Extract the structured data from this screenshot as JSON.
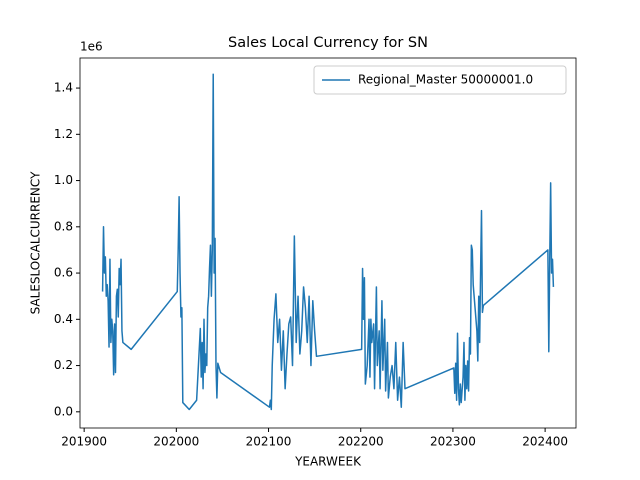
{
  "chart_data": {
    "type": "line",
    "title": "Sales Local Currency for SN",
    "xlabel": "YEARWEEK",
    "ylabel": "SALESLOCALCURRENCY",
    "y_offset_label": "1e6",
    "x": [
      201920,
      201921,
      201922,
      201923,
      201924,
      201925,
      201926,
      201927,
      201928,
      201929,
      201930,
      201931,
      201932,
      201933,
      201934,
      201935,
      201936,
      201937,
      201938,
      201939,
      201940,
      201941,
      201942,
      201951,
      202001,
      202002,
      202003,
      202004,
      202005,
      202006,
      202007,
      202014,
      202022,
      202026,
      202027,
      202028,
      202029,
      202030,
      202031,
      202032,
      202033,
      202034,
      202035,
      202036,
      202037,
      202038,
      202039,
      202040,
      202041,
      202042,
      202043,
      202044,
      202045,
      202048,
      202101,
      202102,
      202103,
      202104,
      202106,
      202108,
      202110,
      202112,
      202114,
      202116,
      202118,
      202120,
      202122,
      202124,
      202126,
      202128,
      202130,
      202132,
      202134,
      202136,
      202138,
      202140,
      202142,
      202144,
      202146,
      202148,
      202150,
      202152,
      202201,
      202202,
      202203,
      202204,
      202205,
      202207,
      202209,
      202210,
      202211,
      202212,
      202214,
      202215,
      202217,
      202218,
      202220,
      202221,
      202223,
      202224,
      202226,
      202227,
      202229,
      202230,
      202232,
      202234,
      202236,
      202238,
      202240,
      202242,
      202244,
      202246,
      202248,
      202301,
      202302,
      202303,
      202304,
      202305,
      202306,
      202307,
      202308,
      202309,
      202311,
      202312,
      202313,
      202314,
      202315,
      202316,
      202317,
      202318,
      202319,
      202320,
      202321,
      202322,
      202324,
      202326,
      202327,
      202328,
      202329,
      202330,
      202331,
      202332,
      202333,
      202403,
      202404,
      202405,
      202406,
      202407,
      202408,
      202409
    ],
    "series": [
      {
        "name": "Regional_Master 50000001.0",
        "color": "#1f77b4",
        "values": [
          520000,
          800000,
          600000,
          670000,
          500000,
          550000,
          480000,
          280000,
          660000,
          300000,
          400000,
          350000,
          160000,
          380000,
          170000,
          500000,
          530000,
          410000,
          620000,
          550000,
          660000,
          350000,
          300000,
          270000,
          520000,
          700000,
          930000,
          600000,
          410000,
          450000,
          40000,
          10000,
          50000,
          360000,
          150000,
          300000,
          100000,
          400000,
          170000,
          250000,
          200000,
          450000,
          500000,
          620000,
          720000,
          500000,
          700000,
          1460000,
          600000,
          750000,
          200000,
          60000,
          210000,
          170000,
          20000,
          50000,
          10000,
          200000,
          400000,
          510000,
          300000,
          400000,
          180000,
          350000,
          100000,
          250000,
          380000,
          410000,
          200000,
          760000,
          300000,
          500000,
          250000,
          350000,
          540000,
          450000,
          300000,
          500000,
          200000,
          480000,
          350000,
          240000,
          270000,
          620000,
          400000,
          580000,
          120000,
          200000,
          400000,
          150000,
          400000,
          300000,
          380000,
          100000,
          540000,
          200000,
          350000,
          100000,
          480000,
          180000,
          400000,
          90000,
          300000,
          60000,
          150000,
          200000,
          100000,
          300000,
          50000,
          150000,
          20000,
          300000,
          100000,
          190000,
          80000,
          210000,
          50000,
          340000,
          100000,
          30000,
          120000,
          40000,
          150000,
          300000,
          50000,
          200000,
          100000,
          220000,
          90000,
          320000,
          250000,
          720000,
          700000,
          550000,
          450000,
          350000,
          220000,
          500000,
          300000,
          600000,
          870000,
          430000,
          460000,
          700000,
          260000,
          650000,
          990000,
          600000,
          660000,
          540000
        ]
      }
    ],
    "xlim": [
      201895.5,
      202433.5
    ],
    "xticks": [
      201900,
      202000,
      202100,
      202200,
      202300,
      202400
    ],
    "ylim": [
      -70000,
      1530000
    ],
    "yticks": [
      {
        "value": 0,
        "label": "0.0"
      },
      {
        "value": 200000,
        "label": "0.2"
      },
      {
        "value": 400000,
        "label": "0.4"
      },
      {
        "value": 600000,
        "label": "0.6"
      },
      {
        "value": 800000,
        "label": "0.8"
      },
      {
        "value": 1000000,
        "label": "1.0"
      },
      {
        "value": 1200000,
        "label": "1.2"
      },
      {
        "value": 1400000,
        "label": "1.4"
      }
    ],
    "grid": false,
    "legend": "upper right"
  }
}
